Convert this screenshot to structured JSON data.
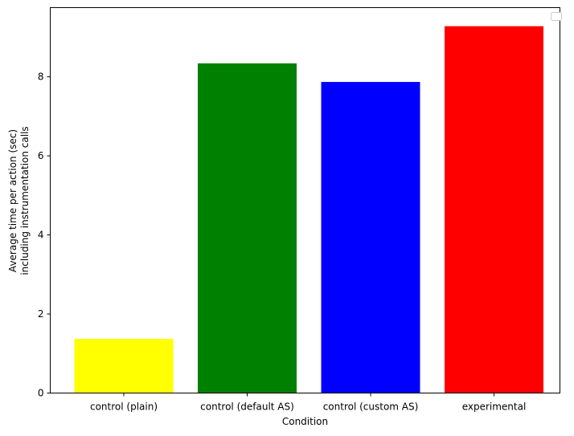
{
  "chart_data": {
    "type": "bar",
    "categories": [
      "control (plain)",
      "control (default AS)",
      "control (custom AS)",
      "experimental"
    ],
    "values": [
      1.37,
      8.34,
      7.87,
      9.28
    ],
    "colors": [
      "#ffff00",
      "#008000",
      "#0000ff",
      "#ff0000"
    ],
    "xlabel": "Condition",
    "ylabel_lines": [
      "Average time per action (sec)",
      "including instrumentation calls"
    ],
    "ylim": [
      0,
      9.75
    ],
    "yticks": [
      0,
      2,
      4,
      6,
      8
    ],
    "legend": {
      "placement": "top-right",
      "entries": []
    },
    "grid": false
  }
}
